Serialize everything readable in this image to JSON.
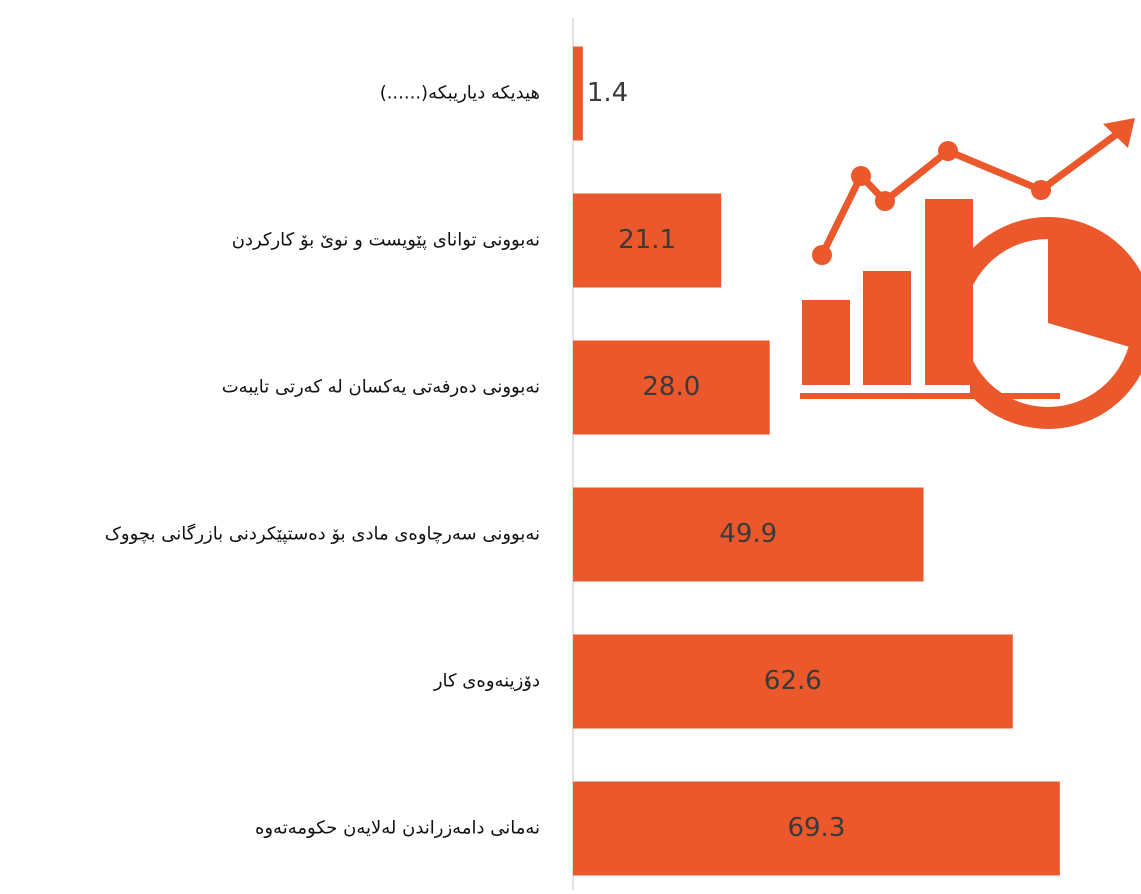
{
  "chart_data": {
    "type": "hbar",
    "categories": [
      "هیدیکه دیاریبکه(......)",
      "نەبوونی توانای پێویست و نوێ بۆ کارکردن",
      "نەبوونی دەرفەتی یەکسان لە کەرتی تایبەت",
      "نەبوونی سەرچاوەی مادی بۆ  دەستپێکردنی بازرگانی بچووک",
      "دۆزینەوەی کار",
      "نەمانی دامەزراندن لەلایەن حکومەتەوە"
    ],
    "values": [
      1.4,
      21.1,
      28.0,
      49.9,
      62.6,
      69.3
    ],
    "value_labels": [
      "1.4",
      "21.1",
      "28.0",
      "49.9",
      "62.6",
      "69.3"
    ],
    "color": "#ea582b",
    "xlim": [
      0,
      80
    ]
  }
}
